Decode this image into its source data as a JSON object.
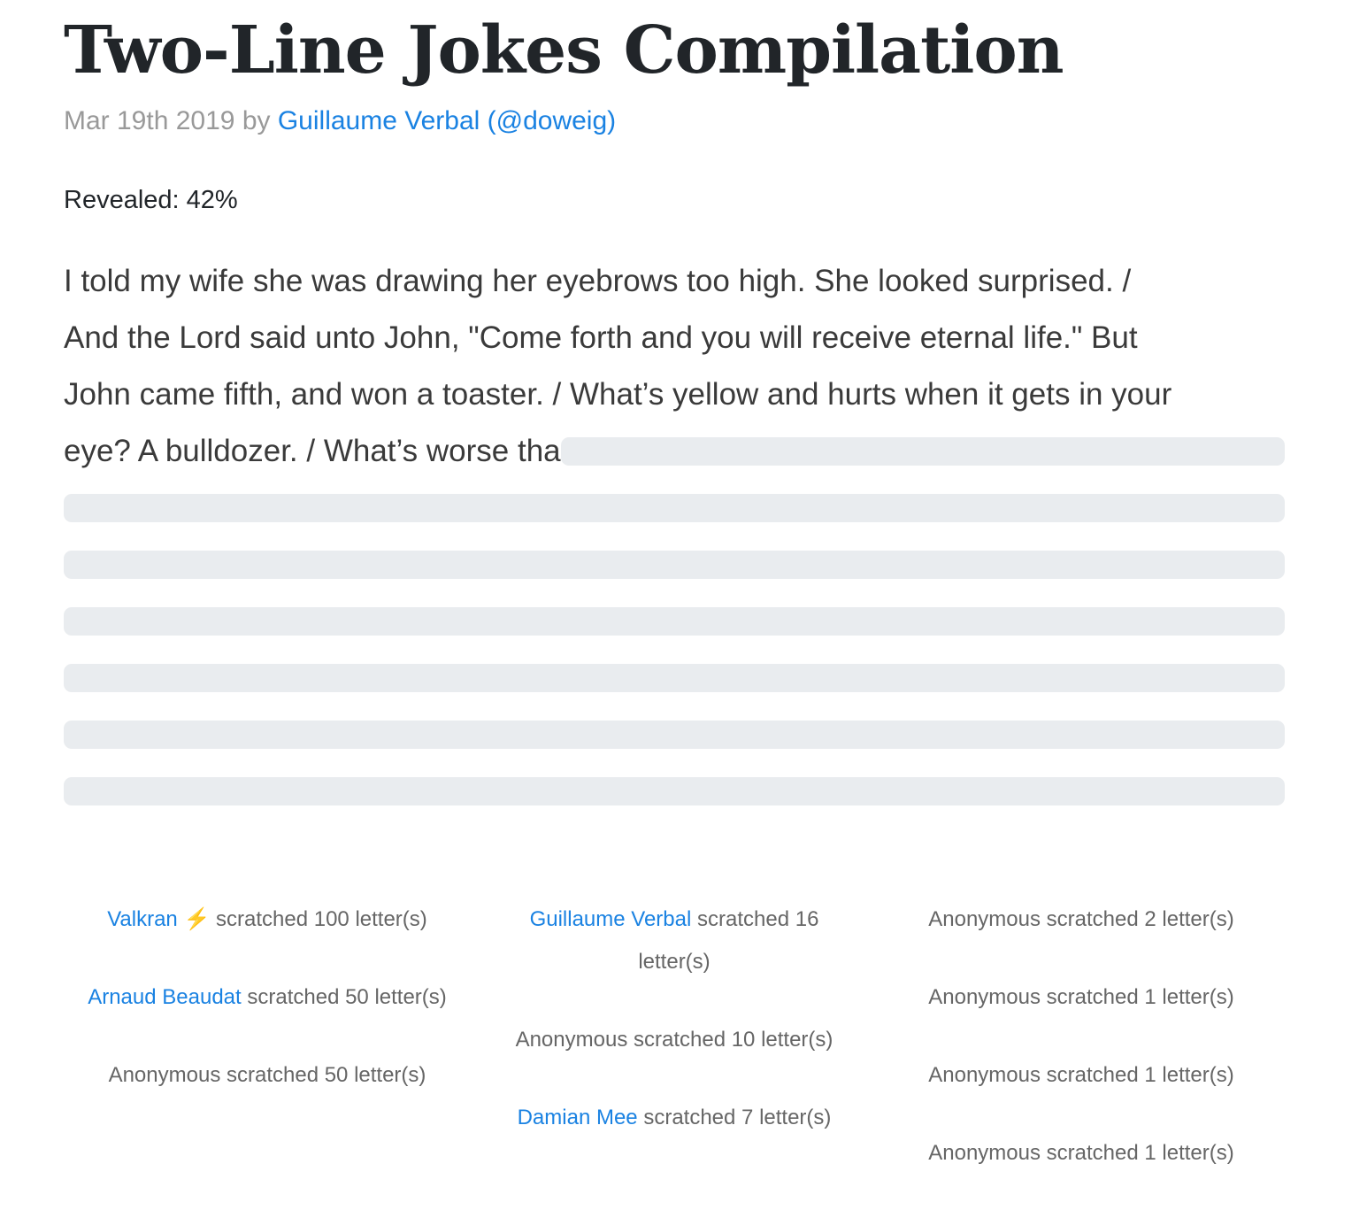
{
  "title": "Two-Line Jokes Compilation",
  "meta": {
    "date": "Mar 19th 2019",
    "by": "by",
    "author": "Guillaume Verbal (@doweig)"
  },
  "revealed": {
    "label": "Revealed: 42%",
    "percent": 42
  },
  "joke_lines": [
    "I told my wife she was drawing her eyebrows too high. She looked surprised. /",
    "And the Lord said unto John, \"Come forth and you will receive eternal life.\" But",
    "John came fifth, and won a toaster. / What’s yellow and hurts when it gets in your",
    "eye? A bulldozer. / What’s worse tha"
  ],
  "colors": {
    "link": "#1a82e2",
    "mask": "#e9ecef",
    "bolt": "#f5a623"
  },
  "contributors": [
    [
      {
        "name": "Valkran",
        "badge": "⚡",
        "text": "scratched 100 letter(s)"
      },
      {
        "name": "Arnaud Beaudat",
        "text": "scratched 50 letter(s)"
      },
      {
        "name": "",
        "text": "Anonymous scratched 50 letter(s)"
      }
    ],
    [
      {
        "name": "Guillaume Verbal",
        "text": "scratched 16 letter(s)"
      },
      {
        "name": "",
        "text": "Anonymous scratched 10 letter(s)"
      },
      {
        "name": "Damian Mee",
        "text": "scratched 7 letter(s)"
      }
    ],
    [
      {
        "name": "",
        "text": "Anonymous scratched 2 letter(s)"
      },
      {
        "name": "",
        "text": "Anonymous scratched 1 letter(s)"
      },
      {
        "name": "",
        "text": "Anonymous scratched 1 letter(s)"
      },
      {
        "name": "",
        "text": "Anonymous scratched 1 letter(s)"
      }
    ]
  ]
}
